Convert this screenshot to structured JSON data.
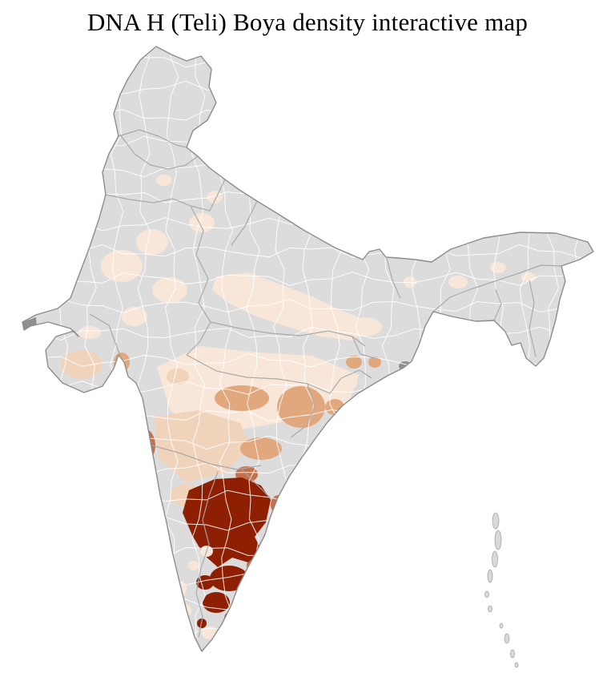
{
  "title": "DNA H (Teli) Boya density interactive map",
  "map": {
    "region": "India",
    "type": "district choropleth",
    "palette": {
      "no_data": "#dcdcdc",
      "very_low": "#f8e7d9",
      "low": "#f0d3bb",
      "medium": "#e1a77d",
      "medium_high": "#c4714b",
      "high": "#8e1f02",
      "special_unknown": "#8f8f8f",
      "island": "#d9d9d9",
      "district_border": "#ffffff",
      "state_border": "#a6a6a6",
      "country_outline": "#8c8c8c",
      "background": "#ffffff",
      "title_color": "#000000"
    },
    "density_levels": [
      "no_data",
      "very_low",
      "low",
      "medium",
      "medium_high",
      "high"
    ],
    "high_density_area": "Rayalaseema / southern Andhra Pradesh and northern Tamil Nadu",
    "islands": "Andaman and Nicobar chain (no data)"
  }
}
